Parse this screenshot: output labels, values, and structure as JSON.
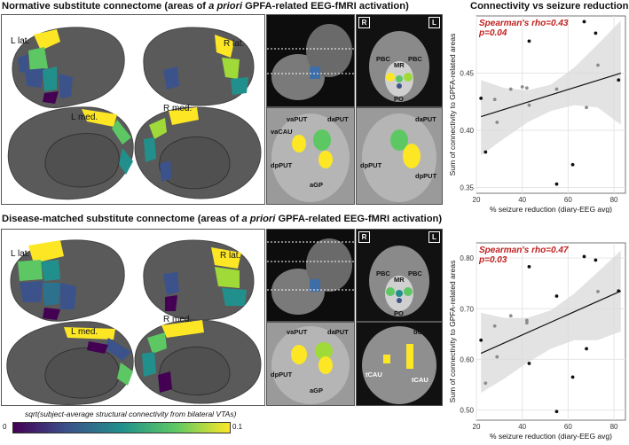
{
  "titles": {
    "top_left": [
      "Normative substitute connectome (areas of ",
      "a priori",
      " GPFA-related EEG-fMRI activation)"
    ],
    "bottom_left": [
      "Disease-matched substitute connectome (areas of ",
      "a priori",
      " GPFA-related EEG-fMRI activation)"
    ],
    "top_right": "Connectivity vs seizure reduction"
  },
  "brain_labels": {
    "l_lat": "L lat.",
    "r_lat": "R lat.",
    "l_med": "L med.",
    "r_med": "R med."
  },
  "mri_corners": {
    "r": "R",
    "l": "L"
  },
  "mri_labels_top": {
    "pbc": "PBC",
    "mr": "MR",
    "po": "PO",
    "vaput": "vaPUT",
    "daput": "daPUT",
    "vacau": "vaCAU",
    "dpput": "dpPUT",
    "agp": "aGP"
  },
  "mri_labels_bottom": {
    "pbc": "PBC",
    "mr": "MR",
    "po": "PO",
    "vaput": "vaPUT",
    "daput": "daPUT",
    "dpput": "dpPUT",
    "agp": "aGP",
    "bcau": "bCAU",
    "tcau": "tCAU"
  },
  "colorbar": {
    "label": "sqrt(subject-average structural connectivity from bilateral VTAs)",
    "min": "0",
    "max": "0.1",
    "colors": [
      "#440154",
      "#3b528b",
      "#21908c",
      "#5dc863",
      "#fde725"
    ]
  },
  "chart_data": [
    {
      "type": "scatter",
      "title": "Connectivity vs seizure reduction",
      "xlabel": "% seizure reduction (diary-EEG avg)",
      "ylabel": "Sum of connectivity to GPFA-related areas",
      "annotation": [
        "Spearman's rho=0.43",
        "p=0.04"
      ],
      "xlim": [
        20,
        85
      ],
      "ylim": [
        0.345,
        0.5
      ],
      "xticks": [
        20,
        40,
        60,
        80
      ],
      "yticks": [
        0.35,
        0.4,
        0.45
      ],
      "grid": true,
      "points": [
        {
          "x": 22,
          "y": 0.428,
          "grey": false
        },
        {
          "x": 24,
          "y": 0.381,
          "grey": false
        },
        {
          "x": 28,
          "y": 0.427,
          "grey": true
        },
        {
          "x": 29,
          "y": 0.407,
          "grey": true
        },
        {
          "x": 35,
          "y": 0.436,
          "grey": true
        },
        {
          "x": 40,
          "y": 0.438,
          "grey": true
        },
        {
          "x": 42,
          "y": 0.437,
          "grey": true
        },
        {
          "x": 43,
          "y": 0.478,
          "grey": false
        },
        {
          "x": 43,
          "y": 0.422,
          "grey": true
        },
        {
          "x": 55,
          "y": 0.436,
          "grey": true
        },
        {
          "x": 55,
          "y": 0.353,
          "grey": false
        },
        {
          "x": 62,
          "y": 0.37,
          "grey": false
        },
        {
          "x": 67,
          "y": 0.495,
          "grey": false
        },
        {
          "x": 68,
          "y": 0.42,
          "grey": true
        },
        {
          "x": 72,
          "y": 0.485,
          "grey": false
        },
        {
          "x": 73,
          "y": 0.457,
          "grey": true
        },
        {
          "x": 82,
          "y": 0.444,
          "grey": false
        }
      ],
      "fit": {
        "x": [
          22,
          83
        ],
        "y": [
          0.412,
          0.45
        ]
      },
      "band_upper": [
        0.444,
        0.437,
        0.435,
        0.44,
        0.455,
        0.475,
        0.496
      ],
      "band_lower": [
        0.378,
        0.393,
        0.407,
        0.417,
        0.422,
        0.42,
        0.405
      ]
    },
    {
      "type": "scatter",
      "title": "",
      "xlabel": "% seizure reduction (diary-EEG avg)",
      "ylabel": "Sum of connectivity to GPFA-related areas",
      "annotation": [
        "Spearman's rho=0.47",
        "p=0.03"
      ],
      "xlim": [
        20,
        85
      ],
      "ylim": [
        0.48,
        0.83
      ],
      "xticks": [
        20,
        40,
        60,
        80
      ],
      "yticks": [
        0.5,
        0.6,
        0.7,
        0.8
      ],
      "grid": true,
      "points": [
        {
          "x": 22,
          "y": 0.638,
          "grey": false
        },
        {
          "x": 24,
          "y": 0.553,
          "grey": true
        },
        {
          "x": 28,
          "y": 0.666,
          "grey": true
        },
        {
          "x": 29,
          "y": 0.605,
          "grey": true
        },
        {
          "x": 35,
          "y": 0.686,
          "grey": true
        },
        {
          "x": 42,
          "y": 0.677,
          "grey": true
        },
        {
          "x": 42,
          "y": 0.672,
          "grey": true
        },
        {
          "x": 43,
          "y": 0.783,
          "grey": false
        },
        {
          "x": 43,
          "y": 0.592,
          "grey": false
        },
        {
          "x": 55,
          "y": 0.725,
          "grey": false
        },
        {
          "x": 55,
          "y": 0.497,
          "grey": false
        },
        {
          "x": 62,
          "y": 0.565,
          "grey": false
        },
        {
          "x": 67,
          "y": 0.803,
          "grey": false
        },
        {
          "x": 68,
          "y": 0.621,
          "grey": false
        },
        {
          "x": 72,
          "y": 0.796,
          "grey": false
        },
        {
          "x": 73,
          "y": 0.734,
          "grey": true
        },
        {
          "x": 82,
          "y": 0.735,
          "grey": false
        }
      ],
      "fit": {
        "x": [
          22,
          83
        ],
        "y": [
          0.612,
          0.735
        ]
      },
      "band_upper": [
        0.692,
        0.682,
        0.682,
        0.697,
        0.73,
        0.772,
        0.815
      ],
      "band_lower": [
        0.534,
        0.562,
        0.594,
        0.621,
        0.638,
        0.638,
        0.655
      ]
    }
  ]
}
